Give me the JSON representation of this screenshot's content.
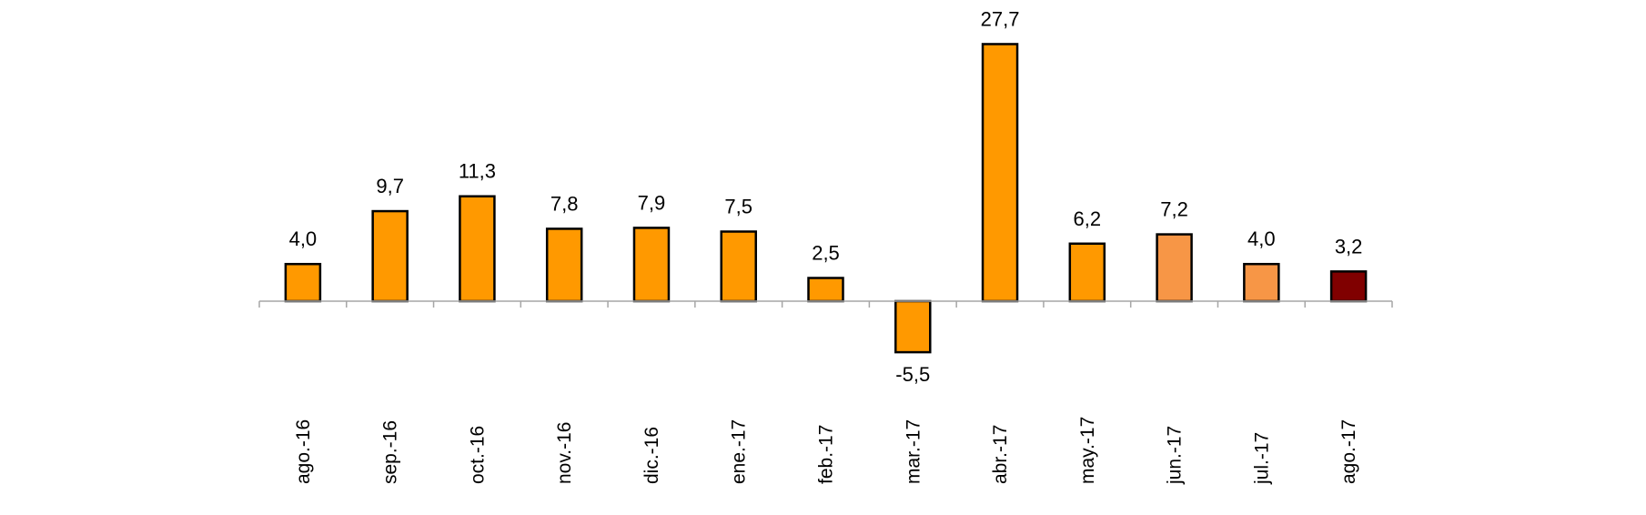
{
  "chart_data": {
    "type": "bar",
    "categories": [
      "ago.-16",
      "sep.-16",
      "oct.-16",
      "nov.-16",
      "dic.-16",
      "ene.-17",
      "feb.-17",
      "mar.-17",
      "abr.-17",
      "may.-17",
      "jun.-17",
      "jul.-17",
      "ago.-17"
    ],
    "values": [
      4.0,
      9.7,
      11.3,
      7.8,
      7.9,
      7.5,
      2.5,
      -5.5,
      27.7,
      6.2,
      7.2,
      4.0,
      3.2
    ],
    "value_labels": [
      "4,0",
      "9,7",
      "11,3",
      "7,8",
      "7,9",
      "7,5",
      "2,5",
      "-5,5",
      "27,7",
      "6,2",
      "7,2",
      "4,0",
      "3,2"
    ],
    "bar_colors": [
      "#ff9900",
      "#ff9900",
      "#ff9900",
      "#ff9900",
      "#ff9900",
      "#ff9900",
      "#ff9900",
      "#ff9900",
      "#ff9900",
      "#ff9900",
      "#f79646",
      "#f79646",
      "#800000"
    ],
    "title": "",
    "xlabel": "",
    "ylabel": "",
    "grid": false,
    "legend": "none",
    "colors": {
      "axis": "#a6a6a6",
      "bar_border": "#000000"
    }
  }
}
